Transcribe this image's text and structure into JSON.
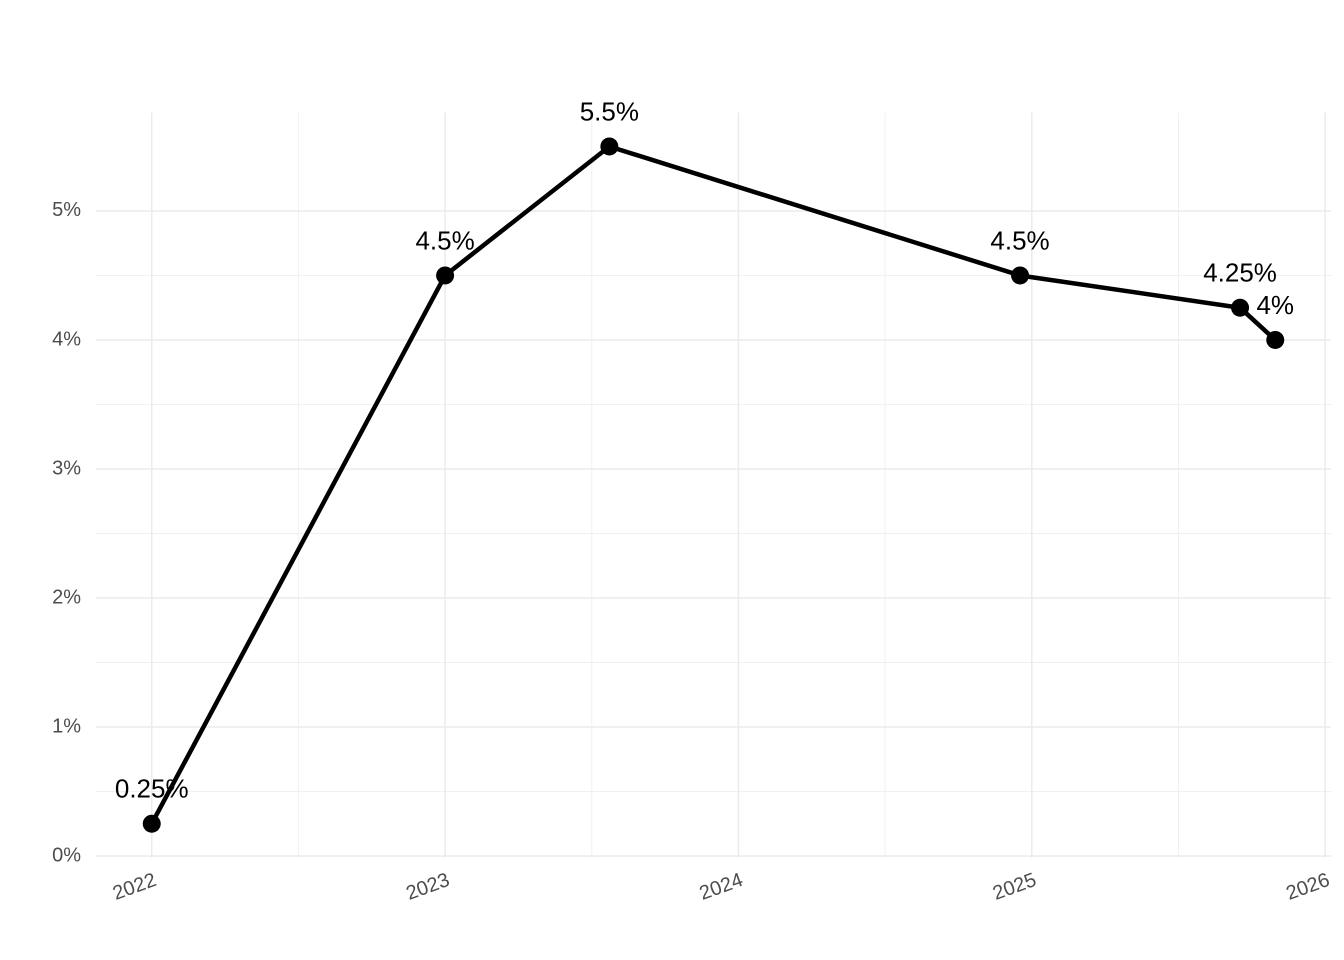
{
  "chart_data": {
    "type": "line",
    "x": [
      2022.0,
      2023.0,
      2023.56,
      2024.96,
      2025.71,
      2025.83
    ],
    "values": [
      0.25,
      4.5,
      5.5,
      4.5,
      4.25,
      4.0
    ],
    "value_labels": [
      "0.25%",
      "4.5%",
      "5.5%",
      "4.5%",
      "4.25%",
      "4%"
    ],
    "color": "#000000",
    "xlim": [
      2021.81,
      2026.02
    ],
    "xticks": [
      2022,
      2023,
      2024,
      2025,
      2026
    ],
    "ylim": [
      -0.0125,
      5.7625
    ],
    "yticks": [
      {
        "value": 0,
        "label": "0%"
      },
      {
        "value": 1,
        "label": "1%"
      },
      {
        "value": 2,
        "label": "2%"
      },
      {
        "value": 3,
        "label": "3%"
      },
      {
        "value": 4,
        "label": "4%"
      },
      {
        "value": 5,
        "label": "5%"
      }
    ],
    "grid": true
  }
}
